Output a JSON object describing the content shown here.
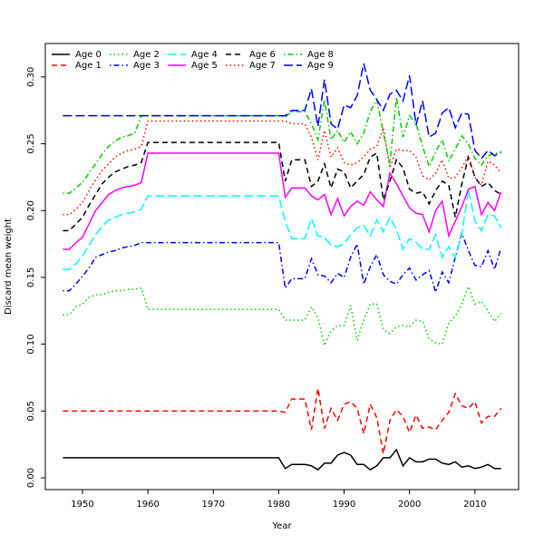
{
  "chart_data": {
    "type": "line",
    "x_label": "Year",
    "y_label": "Discard mean weight",
    "x": [
      1947,
      1948,
      1949,
      1950,
      1951,
      1952,
      1953,
      1954,
      1955,
      1956,
      1957,
      1958,
      1959,
      1960,
      1961,
      1962,
      1963,
      1964,
      1965,
      1966,
      1967,
      1968,
      1969,
      1970,
      1971,
      1972,
      1973,
      1974,
      1975,
      1976,
      1977,
      1978,
      1979,
      1980,
      1981,
      1982,
      1983,
      1984,
      1985,
      1986,
      1987,
      1988,
      1989,
      1990,
      1991,
      1992,
      1993,
      1994,
      1995,
      1996,
      1997,
      1998,
      1999,
      2000,
      2001,
      2002,
      2003,
      2004,
      2005,
      2006,
      2007,
      2008,
      2009,
      2010,
      2011,
      2012,
      2013,
      2014
    ],
    "xlim": [
      1944.32,
      2016.68
    ],
    "xticks": [
      1950,
      1960,
      1970,
      1980,
      1990,
      2000,
      2010
    ],
    "ylim": [
      -0.0088,
      0.325
    ],
    "yticks": [
      {
        "value": 0,
        "label": "0.00"
      },
      0.05,
      {
        "value": 0.1,
        "label": "0.10"
      },
      0.15,
      {
        "value": 0.2,
        "label": "0.20"
      },
      0.25,
      {
        "value": 0.3,
        "label": "0.30"
      }
    ],
    "legend_position": "top-left",
    "series": [
      {
        "name": "Age 0",
        "color": "#000000",
        "dash": "solid",
        "values": [
          0.015,
          0.015,
          0.015,
          0.015,
          0.015,
          0.015,
          0.015,
          0.015,
          0.015,
          0.015,
          0.015,
          0.015,
          0.015,
          0.015,
          0.015,
          0.015,
          0.015,
          0.015,
          0.015,
          0.015,
          0.015,
          0.015,
          0.015,
          0.015,
          0.015,
          0.015,
          0.015,
          0.015,
          0.015,
          0.015,
          0.015,
          0.015,
          0.015,
          0.015,
          0.007,
          0.01,
          0.01,
          0.01,
          0.009,
          0.006,
          0.011,
          0.011,
          0.017,
          0.019,
          0.017,
          0.01,
          0.01,
          0.006,
          0.009,
          0.015,
          0.015,
          0.021,
          0.009,
          0.015,
          0.012,
          0.012,
          0.014,
          0.014,
          0.011,
          0.01,
          0.012,
          0.008,
          0.009,
          0.007,
          0.008,
          0.01,
          0.007,
          0.007
        ]
      },
      {
        "name": "Age 1",
        "color": "#ff0000",
        "dash": "dashed",
        "values": [
          0.05,
          0.05,
          0.05,
          0.05,
          0.05,
          0.05,
          0.05,
          0.05,
          0.05,
          0.05,
          0.05,
          0.05,
          0.05,
          0.05,
          0.05,
          0.05,
          0.05,
          0.05,
          0.05,
          0.05,
          0.05,
          0.05,
          0.05,
          0.05,
          0.05,
          0.05,
          0.05,
          0.05,
          0.05,
          0.05,
          0.05,
          0.05,
          0.05,
          0.05,
          0.049,
          0.059,
          0.059,
          0.059,
          0.036,
          0.067,
          0.037,
          0.052,
          0.043,
          0.055,
          0.057,
          0.052,
          0.033,
          0.055,
          0.045,
          0.018,
          0.043,
          0.051,
          0.046,
          0.034,
          0.047,
          0.037,
          0.038,
          0.036,
          0.043,
          0.049,
          0.063,
          0.054,
          0.052,
          0.057,
          0.041,
          0.046,
          0.046,
          0.052
        ]
      },
      {
        "name": "Age 2",
        "color": "#00cd00",
        "dash": "dotted",
        "values": [
          0.122,
          0.122,
          0.128,
          0.13,
          0.135,
          0.137,
          0.137,
          0.139,
          0.14,
          0.14,
          0.141,
          0.141,
          0.142,
          0.126,
          0.126,
          0.126,
          0.126,
          0.126,
          0.126,
          0.126,
          0.126,
          0.126,
          0.126,
          0.126,
          0.126,
          0.126,
          0.126,
          0.126,
          0.126,
          0.126,
          0.126,
          0.126,
          0.126,
          0.126,
          0.118,
          0.118,
          0.118,
          0.118,
          0.128,
          0.12,
          0.099,
          0.11,
          0.114,
          0.114,
          0.129,
          0.103,
          0.118,
          0.13,
          0.13,
          0.111,
          0.108,
          0.113,
          0.114,
          0.113,
          0.118,
          0.117,
          0.104,
          0.101,
          0.1,
          0.116,
          0.121,
          0.13,
          0.143,
          0.13,
          0.132,
          0.125,
          0.117,
          0.123
        ]
      },
      {
        "name": "Age 3",
        "color": "#0000ff",
        "dash": "dotdash",
        "values": [
          0.14,
          0.14,
          0.145,
          0.151,
          0.157,
          0.165,
          0.167,
          0.169,
          0.17,
          0.172,
          0.173,
          0.174,
          0.176,
          0.176,
          0.176,
          0.176,
          0.176,
          0.176,
          0.176,
          0.176,
          0.176,
          0.176,
          0.176,
          0.176,
          0.176,
          0.176,
          0.176,
          0.176,
          0.176,
          0.176,
          0.176,
          0.176,
          0.176,
          0.176,
          0.142,
          0.149,
          0.149,
          0.149,
          0.164,
          0.152,
          0.151,
          0.146,
          0.153,
          0.15,
          0.165,
          0.175,
          0.145,
          0.158,
          0.167,
          0.152,
          0.147,
          0.145,
          0.152,
          0.157,
          0.148,
          0.152,
          0.155,
          0.139,
          0.154,
          0.146,
          0.165,
          0.183,
          0.17,
          0.159,
          0.158,
          0.17,
          0.156,
          0.172
        ]
      },
      {
        "name": "Age 4",
        "color": "#00ffff",
        "dash": "longdash",
        "values": [
          0.156,
          0.156,
          0.16,
          0.166,
          0.174,
          0.182,
          0.188,
          0.193,
          0.195,
          0.197,
          0.198,
          0.199,
          0.201,
          0.211,
          0.211,
          0.211,
          0.211,
          0.211,
          0.211,
          0.211,
          0.211,
          0.211,
          0.211,
          0.211,
          0.211,
          0.211,
          0.211,
          0.211,
          0.211,
          0.211,
          0.211,
          0.211,
          0.211,
          0.211,
          0.192,
          0.179,
          0.179,
          0.179,
          0.194,
          0.181,
          0.18,
          0.174,
          0.173,
          0.175,
          0.182,
          0.187,
          0.189,
          0.181,
          0.193,
          0.184,
          0.195,
          0.186,
          0.171,
          0.179,
          0.176,
          0.171,
          0.171,
          0.182,
          0.165,
          0.173,
          0.165,
          0.182,
          0.216,
          0.192,
          0.185,
          0.197,
          0.196,
          0.187
        ]
      },
      {
        "name": "Age 5",
        "color": "#ff00ff",
        "dash": "solid",
        "values": [
          0.171,
          0.171,
          0.176,
          0.18,
          0.19,
          0.2,
          0.206,
          0.212,
          0.215,
          0.217,
          0.218,
          0.219,
          0.221,
          0.243,
          0.243,
          0.243,
          0.243,
          0.243,
          0.243,
          0.243,
          0.243,
          0.243,
          0.243,
          0.243,
          0.243,
          0.243,
          0.243,
          0.243,
          0.243,
          0.243,
          0.243,
          0.243,
          0.243,
          0.243,
          0.21,
          0.217,
          0.217,
          0.217,
          0.211,
          0.208,
          0.212,
          0.197,
          0.209,
          0.196,
          0.203,
          0.207,
          0.204,
          0.214,
          0.208,
          0.203,
          0.228,
          0.22,
          0.211,
          0.202,
          0.198,
          0.197,
          0.184,
          0.2,
          0.207,
          0.181,
          0.192,
          0.203,
          0.216,
          0.218,
          0.197,
          0.206,
          0.2,
          0.214
        ]
      },
      {
        "name": "Age 6",
        "color": "#000000",
        "dash": "dashed",
        "values": [
          0.185,
          0.185,
          0.19,
          0.195,
          0.204,
          0.212,
          0.22,
          0.225,
          0.229,
          0.231,
          0.233,
          0.234,
          0.236,
          0.251,
          0.251,
          0.251,
          0.251,
          0.251,
          0.251,
          0.251,
          0.251,
          0.251,
          0.251,
          0.251,
          0.251,
          0.251,
          0.251,
          0.251,
          0.251,
          0.251,
          0.251,
          0.251,
          0.251,
          0.251,
          0.222,
          0.238,
          0.238,
          0.238,
          0.218,
          0.222,
          0.235,
          0.217,
          0.231,
          0.229,
          0.217,
          0.222,
          0.227,
          0.24,
          0.243,
          0.208,
          0.222,
          0.238,
          0.232,
          0.216,
          0.213,
          0.214,
          0.205,
          0.215,
          0.222,
          0.219,
          0.195,
          0.22,
          0.24,
          0.225,
          0.218,
          0.221,
          0.215,
          0.212
        ]
      },
      {
        "name": "Age 7",
        "color": "#ff0000",
        "dash": "dotted",
        "values": [
          0.197,
          0.197,
          0.201,
          0.206,
          0.215,
          0.223,
          0.23,
          0.235,
          0.24,
          0.243,
          0.245,
          0.246,
          0.248,
          0.267,
          0.267,
          0.267,
          0.267,
          0.267,
          0.267,
          0.267,
          0.267,
          0.267,
          0.267,
          0.267,
          0.267,
          0.267,
          0.267,
          0.267,
          0.267,
          0.267,
          0.267,
          0.267,
          0.267,
          0.267,
          0.267,
          0.265,
          0.265,
          0.265,
          0.255,
          0.238,
          0.26,
          0.24,
          0.247,
          0.236,
          0.234,
          0.236,
          0.24,
          0.246,
          0.248,
          0.262,
          0.232,
          0.246,
          0.245,
          0.245,
          0.24,
          0.226,
          0.223,
          0.228,
          0.238,
          0.224,
          0.225,
          0.232,
          0.241,
          0.225,
          0.219,
          0.237,
          0.234,
          0.228
        ]
      },
      {
        "name": "Age 8",
        "color": "#00cd00",
        "dash": "dotdash",
        "values": [
          0.213,
          0.213,
          0.217,
          0.221,
          0.228,
          0.235,
          0.242,
          0.248,
          0.252,
          0.255,
          0.256,
          0.258,
          0.271,
          0.271,
          0.271,
          0.271,
          0.271,
          0.271,
          0.271,
          0.271,
          0.271,
          0.271,
          0.271,
          0.271,
          0.271,
          0.271,
          0.271,
          0.271,
          0.271,
          0.271,
          0.271,
          0.271,
          0.271,
          0.271,
          0.27,
          0.274,
          0.274,
          0.274,
          0.265,
          0.253,
          0.283,
          0.253,
          0.26,
          0.251,
          0.259,
          0.25,
          0.258,
          0.274,
          0.283,
          0.258,
          0.235,
          0.285,
          0.255,
          0.271,
          0.265,
          0.248,
          0.233,
          0.244,
          0.253,
          0.237,
          0.246,
          0.256,
          0.25,
          0.239,
          0.234,
          0.241,
          0.243,
          0.243
        ]
      },
      {
        "name": "Age 9",
        "color": "#0000ff",
        "dash": "longdash",
        "values": [
          0.271,
          0.271,
          0.271,
          0.271,
          0.271,
          0.271,
          0.271,
          0.271,
          0.271,
          0.271,
          0.271,
          0.271,
          0.271,
          0.271,
          0.271,
          0.271,
          0.271,
          0.271,
          0.271,
          0.271,
          0.271,
          0.271,
          0.271,
          0.271,
          0.271,
          0.271,
          0.271,
          0.271,
          0.271,
          0.271,
          0.271,
          0.271,
          0.271,
          0.271,
          0.271,
          0.275,
          0.275,
          0.275,
          0.291,
          0.263,
          0.298,
          0.265,
          0.261,
          0.279,
          0.277,
          0.286,
          0.31,
          0.29,
          0.283,
          0.275,
          0.287,
          0.29,
          0.282,
          0.301,
          0.264,
          0.282,
          0.255,
          0.258,
          0.273,
          0.277,
          0.262,
          0.273,
          0.272,
          0.245,
          0.239,
          0.245,
          0.241,
          0.244
        ]
      }
    ]
  }
}
